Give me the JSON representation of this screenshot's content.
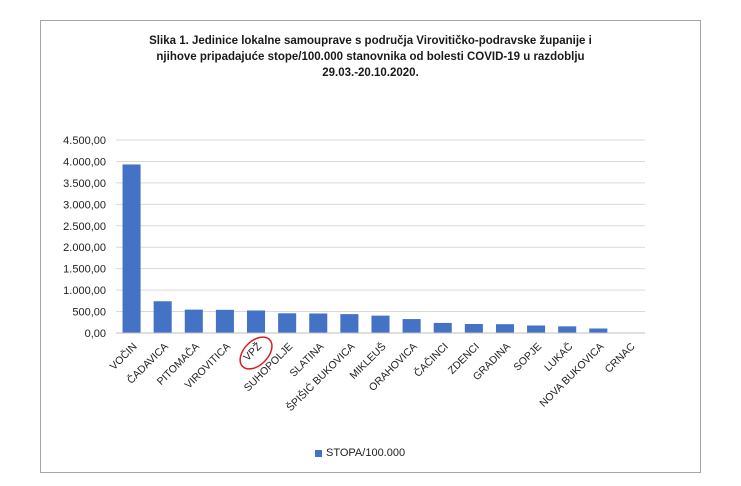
{
  "chart_data": {
    "type": "bar",
    "title_lines": [
      "Slika 1. Jedinice lokalne samouprave s područja Virovitičko-podravske županije i",
      "njihove pripadajuće stope/100.000 stanovnika od bolesti COVID-19 u razdoblju",
      "29.03.-20.10.2020."
    ],
    "categories": [
      "VOČIN",
      "ČADAVICA",
      "PITOMAČA",
      "VIROVITICA",
      "VPŽ",
      "SUHOPOLJE",
      "SLATINA",
      "ŠPIŠIĆ BUKOVICA",
      "MIKLEUŠ",
      "ORAHOVICA",
      "ČAČINCI",
      "ZDENCI",
      "GRADINA",
      "SOPJE",
      "LUKAČ",
      "NOVA BUKOVICA",
      "CRNAC"
    ],
    "values": [
      3930,
      740,
      545,
      540,
      525,
      460,
      455,
      440,
      405,
      325,
      235,
      210,
      205,
      175,
      155,
      105,
      0
    ],
    "series": [
      {
        "name": "STOPA/100.000",
        "color": "#4472c4"
      }
    ],
    "ylim": [
      0,
      4500
    ],
    "yticks": [
      0,
      500,
      1000,
      1500,
      2000,
      2500,
      3000,
      3500,
      4000,
      4500
    ],
    "ytick_labels": [
      "0,00",
      "500,00",
      "1.000,00",
      "1.500,00",
      "2.000,00",
      "2.500,00",
      "3.000,00",
      "3.500,00",
      "4.000,00",
      "4.500,00"
    ],
    "grid": true,
    "legend_position": "bottom",
    "highlighted_category": "VPŽ",
    "highlight_color": "#d42020"
  }
}
